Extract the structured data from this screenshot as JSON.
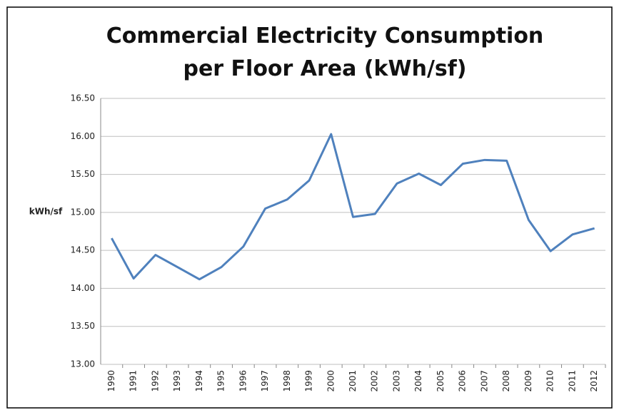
{
  "chart_data": {
    "type": "line",
    "title": "Commercial Electricity Consumption per Floor Area (kWh/sf)",
    "y_label": "kWh/sf",
    "categories": [
      "1990",
      "1991",
      "1992",
      "1993",
      "1994",
      "1995",
      "1996",
      "1997",
      "1998",
      "1999",
      "2000",
      "2001",
      "2002",
      "2003",
      "2004",
      "2005",
      "2006",
      "2007",
      "2008",
      "2009",
      "2010",
      "2011",
      "2012"
    ],
    "series": [
      {
        "name": "kWh/sf",
        "color": "#4f81bd",
        "values": [
          14.66,
          14.13,
          14.44,
          14.28,
          14.12,
          14.28,
          14.55,
          15.05,
          15.17,
          15.42,
          16.03,
          14.94,
          14.98,
          15.38,
          15.51,
          15.36,
          15.64,
          15.69,
          15.68,
          14.9,
          14.49,
          14.71,
          14.79
        ]
      }
    ],
    "ylim": [
      13,
      16.5
    ],
    "yticks": [
      {
        "value": 13,
        "label": "13.00"
      },
      {
        "value": 13.5,
        "label": "13.50"
      },
      {
        "value": 14,
        "label": "14.00"
      },
      {
        "value": 14.5,
        "label": "14.50"
      },
      {
        "value": 15,
        "label": "15.00"
      },
      {
        "value": 15.5,
        "label": "15.50"
      },
      {
        "value": 16,
        "label": "16.00"
      },
      {
        "value": 16.5,
        "label": "16.50"
      }
    ],
    "grid": true
  }
}
